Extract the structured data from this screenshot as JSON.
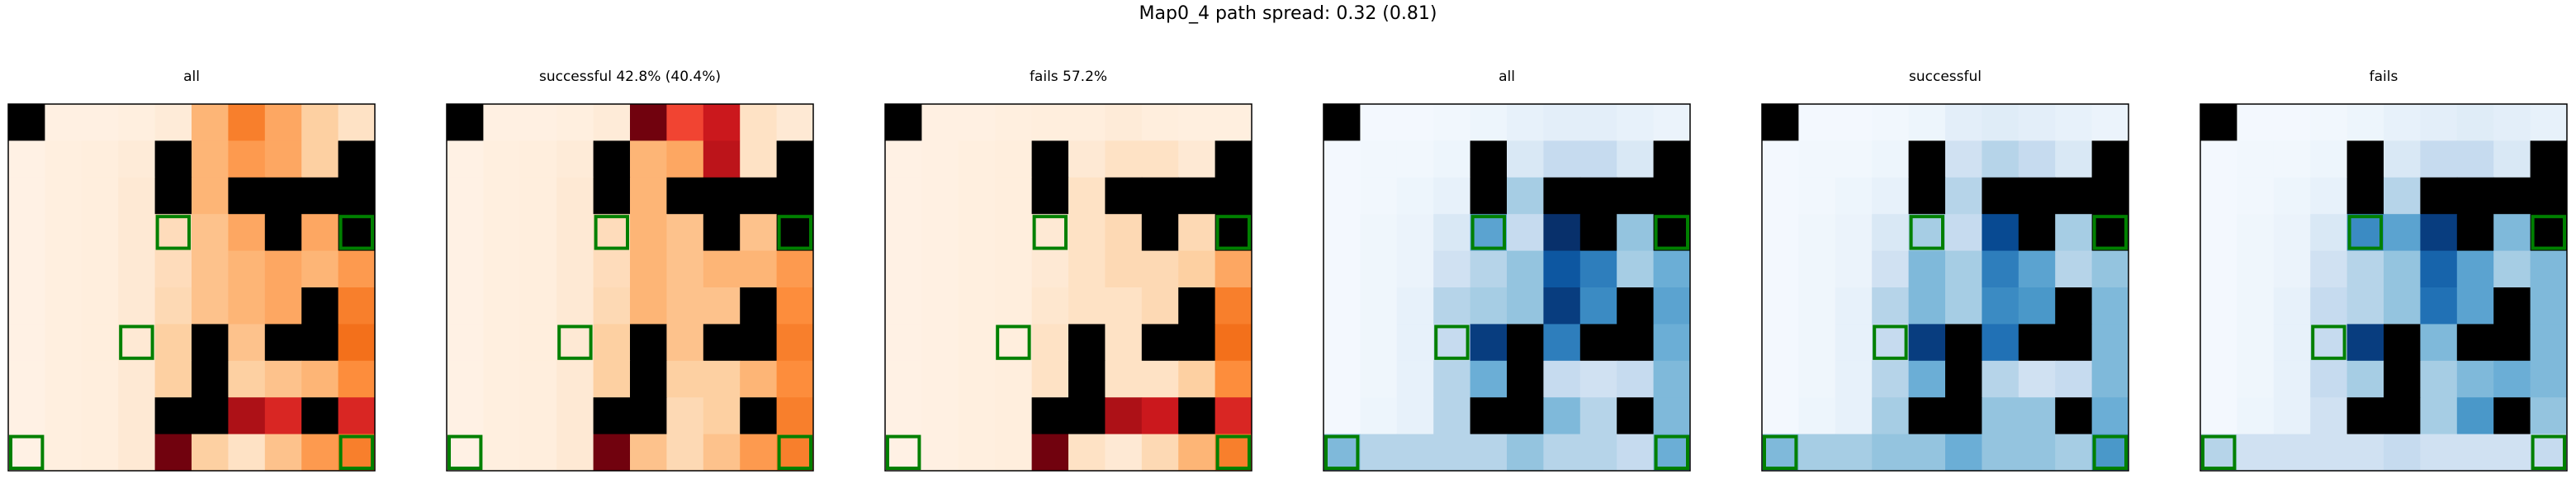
{
  "figure": {
    "title": "Map0_4 path spread: 0.32 (0.81)"
  },
  "colors": {
    "wall": "#000000",
    "marker": "#008000",
    "frame": "#000000",
    "oranges_scale": [
      "#fff5eb",
      "#fee6ce",
      "#fdd0a2",
      "#fdae6b",
      "#fd8d3c",
      "#f16913",
      "#d94801",
      "#a63603",
      "#7f2704"
    ],
    "reds_scale": [
      "#fff5f0",
      "#fee0d2",
      "#fcbba1",
      "#fc9272",
      "#fb6a4a",
      "#ef3b2c",
      "#cb181d",
      "#a50f15",
      "#67000d"
    ],
    "blues_scale": [
      "#f7fbff",
      "#deebf7",
      "#c6dbef",
      "#9ecae1",
      "#6baed6",
      "#4292c6",
      "#2171b5",
      "#08519c",
      "#08306b"
    ]
  },
  "chart_data": [
    {
      "type": "heatmap",
      "title": "all",
      "colormap": "oranges",
      "grid": {
        "rows": 10,
        "cols": 10
      },
      "values": [
        [
          0.02,
          0.04,
          0.04,
          0.05,
          0.08,
          0.35,
          0.55,
          0.4,
          0.25,
          0.15
        ],
        [
          0.03,
          0.05,
          0.06,
          0.08,
          0.12,
          0.35,
          0.45,
          0.4,
          0.25,
          0.15
        ],
        [
          0.03,
          0.05,
          0.06,
          0.1,
          0.18,
          0.35,
          0.4,
          0.45,
          0.3,
          0.2
        ],
        [
          0.03,
          0.05,
          0.06,
          0.1,
          0.18,
          0.3,
          0.4,
          0.45,
          0.4,
          0.35
        ],
        [
          0.03,
          0.05,
          0.06,
          0.1,
          0.18,
          0.3,
          0.35,
          0.4,
          0.35,
          0.45
        ],
        [
          0.03,
          0.05,
          0.06,
          0.1,
          0.2,
          0.3,
          0.35,
          0.4,
          0.35,
          0.55
        ],
        [
          0.03,
          0.05,
          0.06,
          0.1,
          0.25,
          0.3,
          0.3,
          0.35,
          0.4,
          0.6
        ],
        [
          0.03,
          0.05,
          0.06,
          0.1,
          0.25,
          0.25,
          0.25,
          0.3,
          0.35,
          0.5
        ],
        [
          0.03,
          0.05,
          0.06,
          0.1,
          0.15,
          0.15,
          0.2,
          0.25,
          0.4,
          0.6
        ],
        [
          0.03,
          0.05,
          0.06,
          0.1,
          0.12,
          0.25,
          0.15,
          0.3,
          0.45,
          0.55
        ]
      ],
      "overlay_values": [
        [
          0,
          0,
          0,
          0,
          0,
          0,
          0,
          0,
          0,
          0
        ],
        [
          0,
          0,
          0,
          0,
          0,
          0,
          0,
          0,
          0,
          0
        ],
        [
          0,
          0,
          0,
          0,
          0,
          0,
          0,
          0,
          0,
          0
        ],
        [
          0,
          0,
          0,
          0,
          0,
          0,
          0,
          0,
          0,
          0
        ],
        [
          0,
          0,
          0,
          0,
          0,
          0,
          0,
          0,
          0,
          0
        ],
        [
          0,
          0,
          0,
          0,
          0,
          0,
          0,
          0,
          0,
          0
        ],
        [
          0,
          0,
          0,
          0,
          0,
          0,
          0,
          0,
          0,
          0
        ],
        [
          0,
          0,
          0,
          0,
          0,
          0,
          0,
          0,
          0,
          0
        ],
        [
          0,
          0,
          0,
          0,
          0.98,
          0.85,
          0.85,
          0.7,
          0.7,
          0.7
        ],
        [
          0,
          0,
          0,
          0,
          0.98,
          0,
          0,
          0,
          0,
          0
        ]
      ],
      "overlay_colormap": "reds"
    },
    {
      "type": "heatmap",
      "title": "successful 42.8% (40.4%)",
      "colormap": "oranges",
      "grid": {
        "rows": 10,
        "cols": 10
      },
      "values": [
        [
          0.02,
          0.04,
          0.04,
          0.05,
          0.08,
          0.35,
          0.4,
          0.3,
          0.15,
          0.1
        ],
        [
          0.03,
          0.05,
          0.06,
          0.08,
          0.12,
          0.35,
          0.4,
          0.3,
          0.15,
          0.1
        ],
        [
          0.03,
          0.05,
          0.06,
          0.1,
          0.18,
          0.35,
          0.35,
          0.3,
          0.2,
          0.15
        ],
        [
          0.03,
          0.05,
          0.06,
          0.1,
          0.18,
          0.35,
          0.3,
          0.35,
          0.3,
          0.35
        ],
        [
          0.03,
          0.05,
          0.06,
          0.1,
          0.18,
          0.35,
          0.3,
          0.35,
          0.35,
          0.45
        ],
        [
          0.03,
          0.05,
          0.06,
          0.1,
          0.2,
          0.35,
          0.3,
          0.3,
          0.35,
          0.5
        ],
        [
          0.03,
          0.05,
          0.06,
          0.1,
          0.25,
          0.35,
          0.3,
          0.3,
          0.35,
          0.55
        ],
        [
          0.03,
          0.05,
          0.06,
          0.1,
          0.25,
          0.3,
          0.25,
          0.25,
          0.35,
          0.5
        ],
        [
          0.03,
          0.05,
          0.06,
          0.1,
          0.2,
          0.2,
          0.2,
          0.25,
          0.4,
          0.55
        ],
        [
          0.03,
          0.05,
          0.06,
          0.1,
          0.15,
          0.3,
          0.2,
          0.3,
          0.45,
          0.55
        ]
      ],
      "overlay_values": [
        [
          0,
          0,
          0,
          0,
          0,
          0.98,
          0.6,
          0.75,
          0,
          0
        ],
        [
          0,
          0,
          0,
          0,
          0,
          0,
          0,
          0.8,
          0,
          0
        ],
        [
          0,
          0,
          0,
          0,
          0,
          0,
          0,
          0.8,
          0,
          0
        ],
        [
          0,
          0,
          0,
          0,
          0,
          0,
          0,
          0,
          0,
          0
        ],
        [
          0,
          0,
          0,
          0,
          0,
          0,
          0,
          0,
          0,
          0
        ],
        [
          0,
          0,
          0,
          0,
          0,
          0,
          0,
          0,
          0,
          0
        ],
        [
          0,
          0,
          0,
          0,
          0,
          0,
          0,
          0,
          0,
          0
        ],
        [
          0,
          0,
          0,
          0,
          0,
          0,
          0,
          0,
          0,
          0
        ],
        [
          0,
          0,
          0,
          0,
          0.98,
          0.7,
          0,
          0,
          0,
          0
        ],
        [
          0,
          0,
          0,
          0,
          0.98,
          0,
          0,
          0,
          0,
          0
        ]
      ],
      "overlay_colormap": "reds"
    },
    {
      "type": "heatmap",
      "title": "fails 57.2%",
      "colormap": "oranges",
      "grid": {
        "rows": 10,
        "cols": 10
      },
      "values": [
        [
          0.02,
          0.04,
          0.04,
          0.05,
          0.06,
          0.06,
          0.08,
          0.06,
          0.05,
          0.05
        ],
        [
          0.03,
          0.04,
          0.05,
          0.06,
          0.08,
          0.1,
          0.15,
          0.15,
          0.1,
          0.08
        ],
        [
          0.03,
          0.04,
          0.05,
          0.06,
          0.1,
          0.15,
          0.25,
          0.2,
          0.15,
          0.1
        ],
        [
          0.03,
          0.04,
          0.05,
          0.06,
          0.1,
          0.15,
          0.2,
          0.25,
          0.2,
          0.3
        ],
        [
          0.03,
          0.04,
          0.05,
          0.06,
          0.1,
          0.15,
          0.2,
          0.2,
          0.25,
          0.4
        ],
        [
          0.03,
          0.04,
          0.05,
          0.06,
          0.12,
          0.15,
          0.15,
          0.2,
          0.2,
          0.55
        ],
        [
          0.03,
          0.04,
          0.05,
          0.06,
          0.15,
          0.15,
          0.15,
          0.2,
          0.25,
          0.6
        ],
        [
          0.03,
          0.04,
          0.05,
          0.06,
          0.15,
          0.15,
          0.15,
          0.15,
          0.25,
          0.5
        ],
        [
          0.03,
          0.04,
          0.05,
          0.06,
          0.1,
          0.1,
          0.1,
          0.15,
          0.3,
          0.55
        ],
        [
          0.03,
          0.04,
          0.05,
          0.06,
          0.08,
          0.15,
          0.1,
          0.2,
          0.35,
          0.55
        ]
      ],
      "overlay_values": [
        [
          0,
          0,
          0,
          0,
          0,
          0,
          0,
          0,
          0,
          0
        ],
        [
          0,
          0,
          0,
          0,
          0,
          0,
          0,
          0,
          0,
          0
        ],
        [
          0,
          0,
          0,
          0,
          0,
          0,
          0,
          0,
          0,
          0
        ],
        [
          0,
          0,
          0,
          0,
          0,
          0,
          0,
          0,
          0,
          0
        ],
        [
          0,
          0,
          0,
          0,
          0,
          0,
          0,
          0,
          0,
          0
        ],
        [
          0,
          0,
          0,
          0,
          0,
          0,
          0,
          0,
          0,
          0
        ],
        [
          0,
          0,
          0,
          0,
          0,
          0,
          0,
          0,
          0,
          0
        ],
        [
          0,
          0,
          0,
          0,
          0,
          0,
          0,
          0,
          0,
          0
        ],
        [
          0,
          0,
          0,
          0,
          0.98,
          0.98,
          0.85,
          0.75,
          0.8,
          0.7
        ],
        [
          0,
          0,
          0,
          0,
          0.98,
          0,
          0,
          0,
          0,
          0
        ]
      ],
      "overlay_colormap": "reds"
    },
    {
      "type": "heatmap",
      "title": "all",
      "colormap": "blues",
      "grid": {
        "rows": 10,
        "cols": 10
      },
      "values": [
        [
          0.02,
          0.02,
          0.02,
          0.03,
          0.05,
          0.08,
          0.1,
          0.1,
          0.08,
          0.06
        ],
        [
          0.02,
          0.03,
          0.03,
          0.05,
          0.2,
          0.15,
          0.25,
          0.25,
          0.15,
          0.1
        ],
        [
          0.02,
          0.03,
          0.05,
          0.08,
          0.25,
          0.35,
          0.3,
          0.3,
          0.2,
          0.15
        ],
        [
          0.02,
          0.04,
          0.06,
          0.15,
          0.55,
          0.25,
          1.0,
          0.65,
          0.4,
          0.45
        ],
        [
          0.02,
          0.04,
          0.06,
          0.2,
          0.3,
          0.4,
          0.85,
          0.7,
          0.35,
          0.5
        ],
        [
          0.02,
          0.04,
          0.08,
          0.3,
          0.35,
          0.4,
          0.95,
          0.65,
          0.35,
          0.55
        ],
        [
          0.02,
          0.04,
          0.08,
          0.25,
          0.95,
          0.4,
          0.7,
          0.5,
          0.3,
          0.5
        ],
        [
          0.02,
          0.04,
          0.08,
          0.3,
          0.5,
          0.3,
          0.25,
          0.2,
          0.25,
          0.45
        ],
        [
          0.02,
          0.05,
          0.08,
          0.3,
          0.3,
          0.35,
          0.45,
          0.3,
          0.35,
          0.45
        ],
        [
          0.45,
          0.3,
          0.3,
          0.3,
          0.3,
          0.4,
          0.3,
          0.3,
          0.25,
          0.5
        ]
      ]
    },
    {
      "type": "heatmap",
      "title": "successful",
      "colormap": "blues",
      "grid": {
        "rows": 10,
        "cols": 10
      },
      "values": [
        [
          0.02,
          0.02,
          0.02,
          0.03,
          0.05,
          0.1,
          0.12,
          0.1,
          0.08,
          0.06
        ],
        [
          0.02,
          0.03,
          0.03,
          0.05,
          0.25,
          0.2,
          0.3,
          0.25,
          0.15,
          0.1
        ],
        [
          0.02,
          0.03,
          0.05,
          0.08,
          0.3,
          0.3,
          0.45,
          0.3,
          0.2,
          0.15
        ],
        [
          0.02,
          0.04,
          0.06,
          0.15,
          0.35,
          0.25,
          0.9,
          0.55,
          0.35,
          0.4
        ],
        [
          0.02,
          0.04,
          0.06,
          0.2,
          0.45,
          0.35,
          0.7,
          0.55,
          0.3,
          0.4
        ],
        [
          0.02,
          0.04,
          0.08,
          0.3,
          0.45,
          0.35,
          0.65,
          0.6,
          0.3,
          0.45
        ],
        [
          0.02,
          0.04,
          0.08,
          0.25,
          0.95,
          0.35,
          0.75,
          0.55,
          0.3,
          0.45
        ],
        [
          0.02,
          0.04,
          0.08,
          0.3,
          0.5,
          0.3,
          0.3,
          0.2,
          0.25,
          0.45
        ],
        [
          0.02,
          0.05,
          0.08,
          0.35,
          0.45,
          0.45,
          0.4,
          0.4,
          0.4,
          0.5
        ],
        [
          0.45,
          0.35,
          0.35,
          0.4,
          0.4,
          0.5,
          0.4,
          0.4,
          0.35,
          0.6
        ]
      ]
    },
    {
      "type": "heatmap",
      "title": "fails",
      "colormap": "blues",
      "grid": {
        "rows": 10,
        "cols": 10
      },
      "values": [
        [
          0.02,
          0.02,
          0.02,
          0.03,
          0.05,
          0.08,
          0.1,
          0.12,
          0.1,
          0.08
        ],
        [
          0.02,
          0.03,
          0.03,
          0.05,
          0.15,
          0.15,
          0.25,
          0.25,
          0.15,
          0.1
        ],
        [
          0.02,
          0.03,
          0.05,
          0.08,
          0.2,
          0.3,
          0.35,
          0.3,
          0.25,
          0.2
        ],
        [
          0.02,
          0.04,
          0.06,
          0.15,
          0.65,
          0.55,
          0.95,
          0.75,
          0.45,
          0.7
        ],
        [
          0.02,
          0.04,
          0.06,
          0.2,
          0.3,
          0.4,
          0.8,
          0.55,
          0.35,
          0.45
        ],
        [
          0.02,
          0.04,
          0.08,
          0.25,
          0.3,
          0.4,
          0.75,
          0.55,
          0.3,
          0.45
        ],
        [
          0.02,
          0.04,
          0.08,
          0.25,
          0.95,
          0.35,
          0.45,
          0.35,
          0.25,
          0.45
        ],
        [
          0.02,
          0.04,
          0.08,
          0.25,
          0.35,
          0.25,
          0.35,
          0.45,
          0.5,
          0.45
        ],
        [
          0.02,
          0.05,
          0.08,
          0.2,
          0.2,
          0.2,
          0.35,
          0.6,
          0.4,
          0.4
        ],
        [
          0.3,
          0.2,
          0.2,
          0.2,
          0.2,
          0.25,
          0.2,
          0.2,
          0.2,
          0.25
        ]
      ]
    }
  ],
  "map": {
    "walls": [
      [
        0,
        0
      ],
      [
        1,
        4
      ],
      [
        1,
        9
      ],
      [
        2,
        4
      ],
      [
        2,
        6
      ],
      [
        2,
        7
      ],
      [
        2,
        8
      ],
      [
        2,
        9
      ],
      [
        3,
        7
      ],
      [
        3,
        9
      ],
      [
        5,
        8
      ],
      [
        6,
        7
      ],
      [
        6,
        8
      ],
      [
        6,
        5
      ],
      [
        7,
        5
      ],
      [
        8,
        4
      ],
      [
        8,
        5
      ],
      [
        8,
        8
      ]
    ],
    "markers": [
      [
        3,
        4
      ],
      [
        3,
        9
      ],
      [
        6,
        3
      ],
      [
        9,
        0
      ],
      [
        9,
        9
      ]
    ]
  }
}
